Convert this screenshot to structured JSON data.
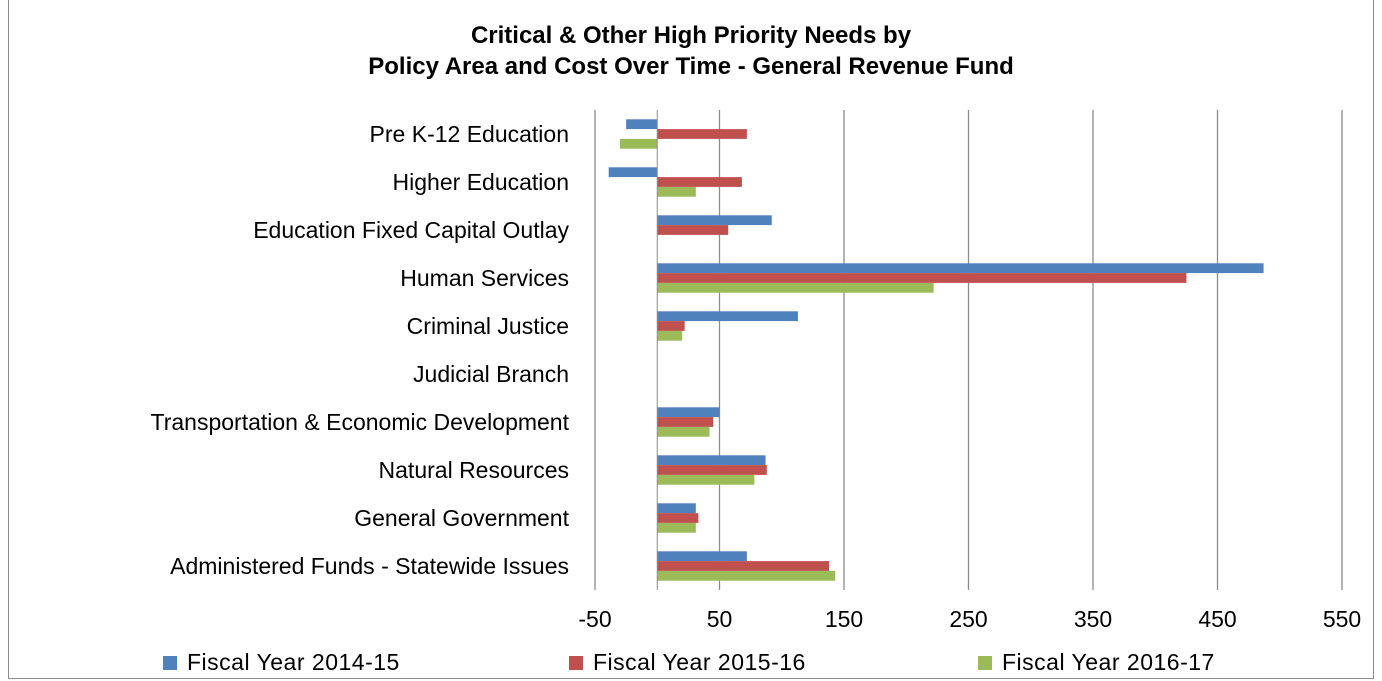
{
  "chart_data": {
    "type": "bar",
    "orientation": "horizontal",
    "title_line1": "Critical & Other High Priority Needs by",
    "title_line2": "Policy Area and Cost Over Time - General Revenue Fund",
    "categories": [
      "Pre K-12 Education",
      "Higher Education",
      "Education Fixed Capital Outlay",
      "Human Services",
      "Criminal Justice",
      "Judicial Branch",
      "Transportation & Economic Development",
      "Natural Resources",
      "General Government",
      "Administered Funds - Statewide Issues"
    ],
    "series": [
      {
        "name": "Fiscal Year 2014-15",
        "color": "#4f81bd",
        "values": [
          -25,
          -39,
          92,
          487,
          113,
          0,
          50,
          87,
          31,
          72
        ]
      },
      {
        "name": "Fiscal Year 2015-16",
        "color": "#c0504d",
        "values": [
          72,
          68,
          57,
          425,
          22,
          0,
          45,
          88,
          33,
          138
        ]
      },
      {
        "name": "Fiscal Year 2016-17",
        "color": "#9bbb59",
        "values": [
          -30,
          31,
          0,
          222,
          20,
          0,
          42,
          78,
          31,
          143
        ]
      }
    ],
    "xticks": [
      "-50",
      "50",
      "150",
      "250",
      "350",
      "450",
      "550"
    ],
    "xlim": [
      -50,
      550
    ],
    "grid": true,
    "legend_position": "bottom"
  }
}
